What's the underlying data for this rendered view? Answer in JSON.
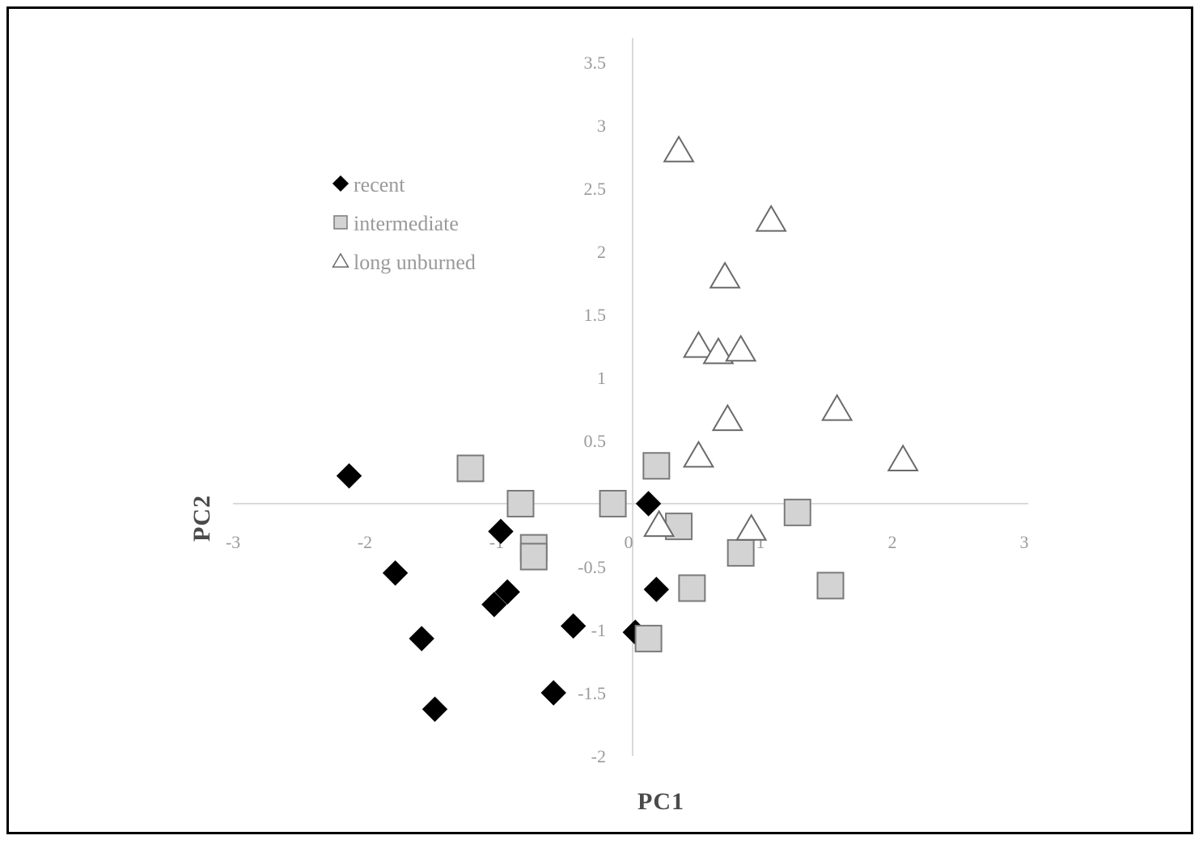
{
  "chart_data": {
    "type": "scatter",
    "xlabel": "PC1",
    "ylabel": "PC2",
    "xlim": [
      -3,
      3
    ],
    "ylim": [
      -2,
      3.5
    ],
    "x_ticks": [
      "-3",
      "-2",
      "-1",
      "0",
      "1",
      "2",
      "3"
    ],
    "y_ticks": [
      "-2",
      "-1.5",
      "-1",
      "-0.5",
      "0",
      "0.5",
      "1",
      "1.5",
      "2",
      "2.5",
      "3",
      "3.5"
    ],
    "x_tick_values": [
      -3,
      -2,
      -1,
      0,
      1,
      2,
      3
    ],
    "y_tick_values": [
      -2,
      -1.5,
      -1,
      -0.5,
      0,
      0.5,
      1,
      1.5,
      2,
      2.5,
      3,
      3.5
    ],
    "grid": false,
    "legend_position": "upper-left",
    "series": [
      {
        "name": "recent",
        "marker": "diamond",
        "color": "#000000",
        "points": [
          [
            -2.15,
            0.22
          ],
          [
            -1.0,
            -0.22
          ],
          [
            -1.8,
            -0.55
          ],
          [
            -0.95,
            -0.7
          ],
          [
            -1.05,
            -0.8
          ],
          [
            -1.6,
            -1.07
          ],
          [
            -0.45,
            -0.97
          ],
          [
            -1.5,
            -1.63
          ],
          [
            -0.6,
            -1.5
          ],
          [
            0.12,
            0.0
          ],
          [
            0.18,
            -0.68
          ],
          [
            0.02,
            -1.02
          ]
        ]
      },
      {
        "name": "intermediate",
        "marker": "square",
        "color": "#d3d3d3",
        "points": [
          [
            -1.23,
            0.28
          ],
          [
            -0.85,
            0.0
          ],
          [
            -0.75,
            -0.35
          ],
          [
            -0.75,
            -0.42
          ],
          [
            -0.15,
            0.0
          ],
          [
            0.18,
            0.3
          ],
          [
            0.35,
            -0.18
          ],
          [
            0.45,
            -0.67
          ],
          [
            1.25,
            -0.07
          ],
          [
            0.82,
            -0.39
          ],
          [
            1.5,
            -0.65
          ],
          [
            0.12,
            -1.07
          ]
        ]
      },
      {
        "name": "long unburned",
        "marker": "triangle",
        "color": "#ffffff",
        "points": [
          [
            0.35,
            2.8
          ],
          [
            1.05,
            2.25
          ],
          [
            0.7,
            1.8
          ],
          [
            0.5,
            1.25
          ],
          [
            0.65,
            1.2
          ],
          [
            0.82,
            1.22
          ],
          [
            0.72,
            0.67
          ],
          [
            1.55,
            0.75
          ],
          [
            2.05,
            0.35
          ],
          [
            0.5,
            0.38
          ],
          [
            0.9,
            -0.2
          ],
          [
            0.2,
            -0.17
          ]
        ]
      }
    ]
  }
}
